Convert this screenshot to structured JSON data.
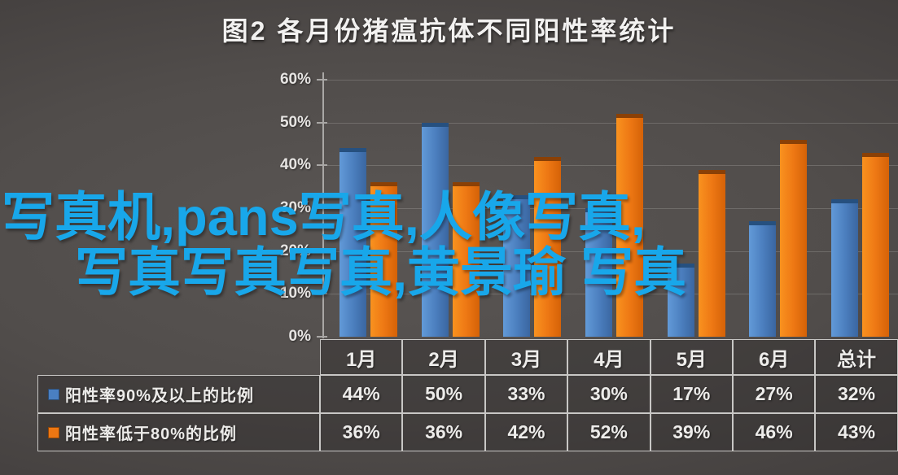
{
  "watermark": {
    "line1": "写真机,pans写真,人像写真,",
    "line2": "写真写真写真,黄景瑜 写真",
    "color": "#18a7ea"
  },
  "chart_data": {
    "type": "bar",
    "title": "图2 各月份猪瘟抗体不同阳性率统计",
    "categories": [
      "1月",
      "2月",
      "3月",
      "4月",
      "5月",
      "6月",
      "总计"
    ],
    "series": [
      {
        "name": "阳性率90%及以上的比例",
        "color": "#4a7fc1",
        "values": [
          44,
          50,
          33,
          30,
          17,
          27,
          32
        ]
      },
      {
        "name": "阳性率低于80%的比例",
        "color": "#ee7712",
        "values": [
          36,
          36,
          42,
          52,
          39,
          46,
          43
        ]
      }
    ],
    "xlabel": "",
    "ylabel": "",
    "ylim": [
      0,
      60
    ],
    "ytick_labels": [
      "60%",
      "50%",
      "40%",
      "30%",
      "20%",
      "10%",
      "0%"
    ],
    "value_suffix": "%",
    "grid": true,
    "legend_position": "table-left",
    "background_color": "#444140"
  }
}
